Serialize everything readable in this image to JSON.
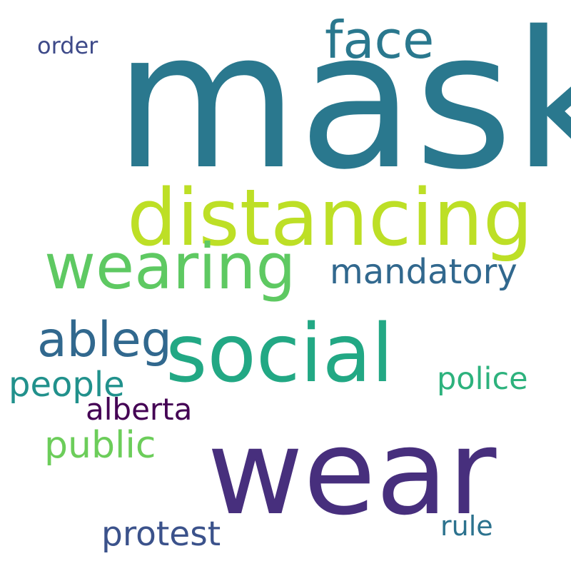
{
  "word_cloud": {
    "words": [
      {
        "text": "mask",
        "color": "#2a788e"
      },
      {
        "text": "distancing",
        "color": "#bddf26"
      },
      {
        "text": "wear",
        "color": "#472f7d"
      },
      {
        "text": "social",
        "color": "#22a884"
      },
      {
        "text": "wearing",
        "color": "#5ec962"
      },
      {
        "text": "face",
        "color": "#2a788e"
      },
      {
        "text": "ableg",
        "color": "#31688e"
      },
      {
        "text": "mandatory",
        "color": "#31688e"
      },
      {
        "text": "public",
        "color": "#6ccd5a"
      },
      {
        "text": "people",
        "color": "#21918c"
      },
      {
        "text": "police",
        "color": "#2db27d"
      },
      {
        "text": "alberta",
        "color": "#440154"
      },
      {
        "text": "protest",
        "color": "#3b528b"
      },
      {
        "text": "rule",
        "color": "#2c728e"
      },
      {
        "text": "order",
        "color": "#3e4a89"
      }
    ]
  }
}
